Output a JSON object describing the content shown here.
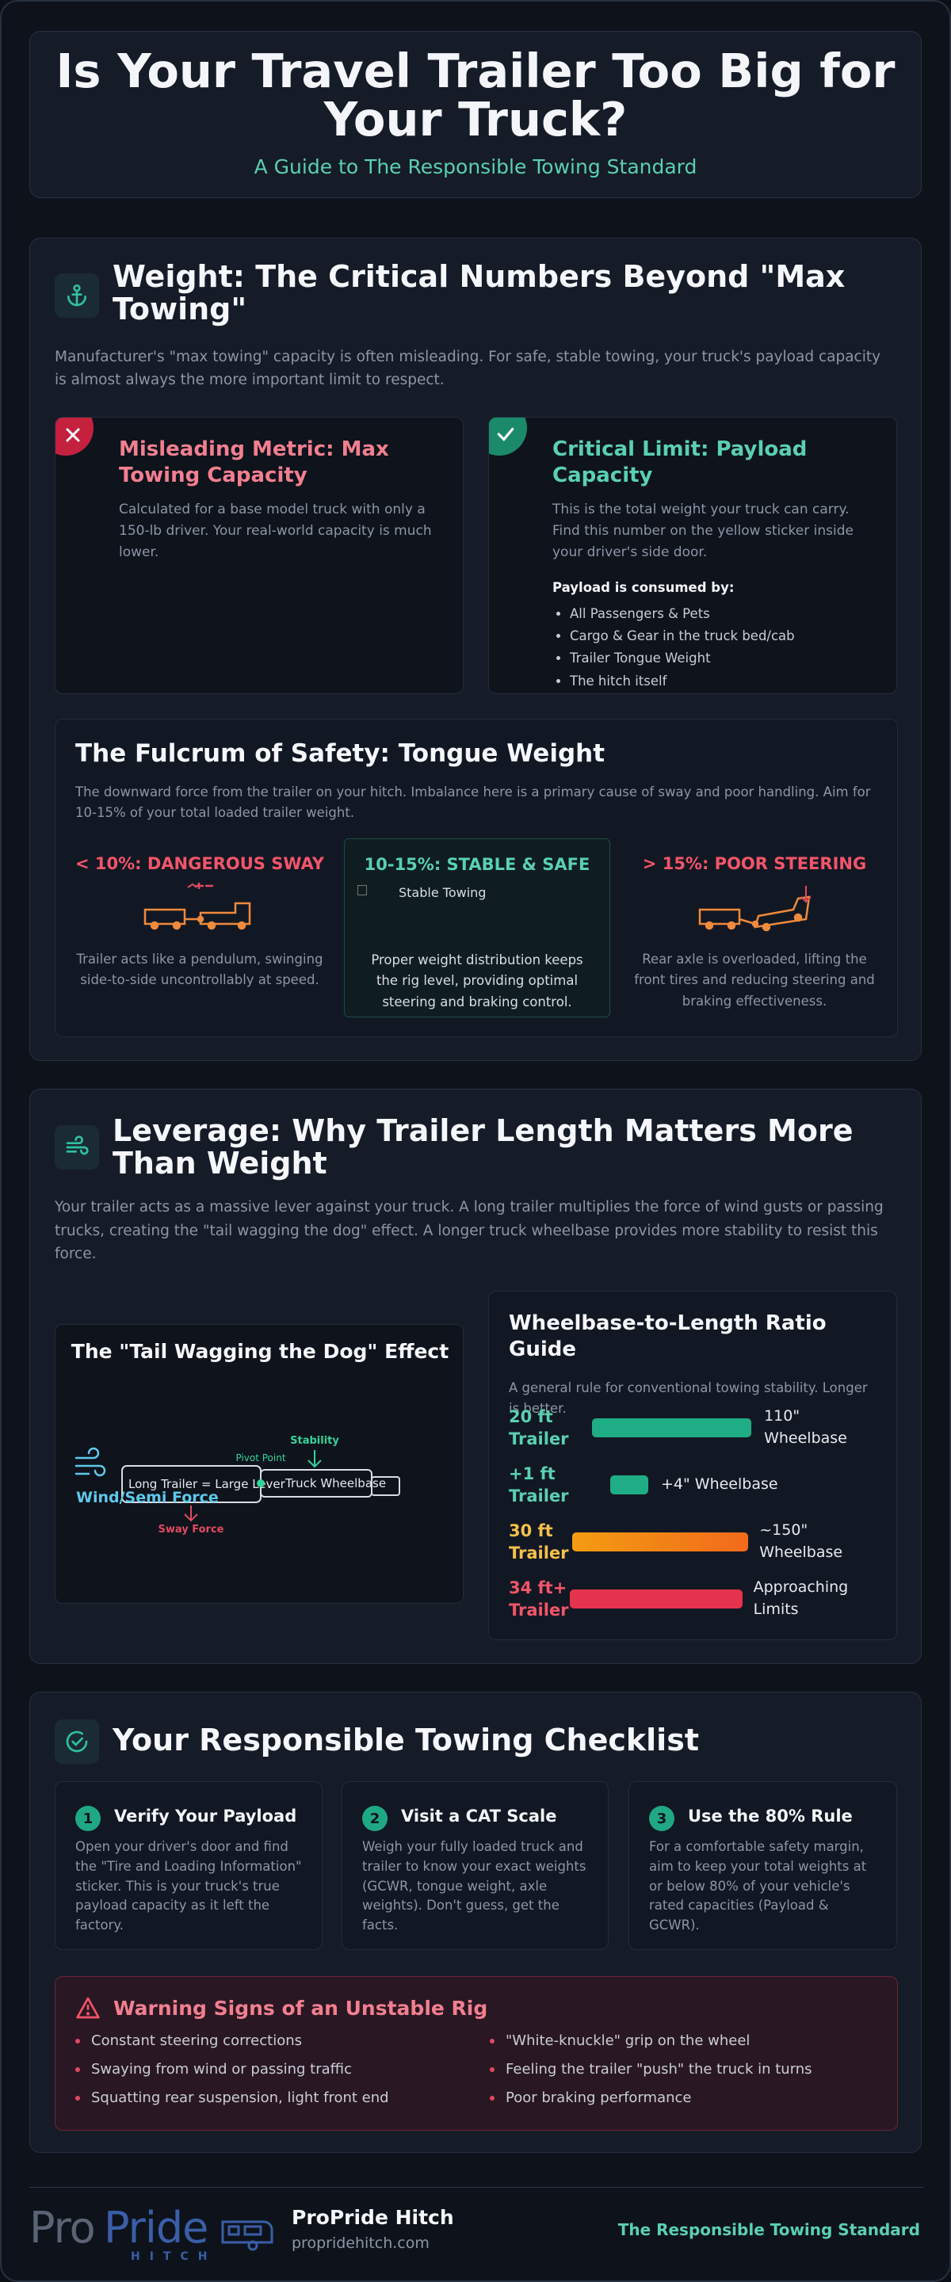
{
  "header": {
    "title": "Is Your Travel Trailer Too Big for Your Truck?",
    "subtitle": "A Guide to The Responsible Towing Standard"
  },
  "weight": {
    "title": "Weight: The Critical Numbers Beyond \"Max Towing\"",
    "intro": "Manufacturer's \"max towing\" capacity is often misleading. For safe, stable towing, your truck's payload capacity is almost always the more important limit to respect.",
    "misleading": {
      "title": "Misleading Metric: Max Towing Capacity",
      "text": "Calculated for a base model truck with only a 150-lb driver. Your real-world capacity is much lower."
    },
    "critical": {
      "title": "Critical Limit: Payload Capacity",
      "text": "This is the total weight your truck can carry. Find this number on the yellow sticker inside your driver's side door.",
      "list_title": "Payload is consumed by:",
      "items": [
        "All Passengers & Pets",
        "Cargo & Gear in the truck bed/cab",
        "Trailer Tongue Weight",
        "The hitch itself"
      ]
    },
    "tongue": {
      "title": "The Fulcrum of Safety: Tongue Weight",
      "intro": "The downward force from the trailer on your hitch. Imbalance here is a primary cause of sway and poor handling. Aim for 10-15% of your total loaded trailer weight.",
      "cases": [
        {
          "label": "< 10%: DANGEROUS SWAY",
          "text": "Trailer acts like a pendulum, swinging side-to-side uncontrollably at speed."
        },
        {
          "label": "10-15%: STABLE & SAFE",
          "image_alt": "Stable Towing",
          "text": "Proper weight distribution keeps the rig level, providing optimal steering and braking control."
        },
        {
          "label": "> 15%: POOR STEERING",
          "text": "Rear axle is overloaded, lifting the front tires and reducing steering and braking effectiveness."
        }
      ]
    }
  },
  "leverage": {
    "title": "Leverage: Why Trailer Length Matters More Than Weight",
    "intro": "Your trailer acts as a massive lever against your truck. A long trailer multiplies the force of wind gusts or passing trucks, creating the \"tail wagging the dog\" effect. A longer truck wheelbase provides more stability to resist this force.",
    "diagram": {
      "title": "The \"Tail Wagging the Dog\" Effect",
      "wind": "Wind/Semi Force",
      "pivot": "Pivot Point",
      "stability": "Stability",
      "trailer": "Long Trailer = Large Lever",
      "wheelbase": "Truck Wheelbase",
      "sway": "Sway Force"
    },
    "ratio": {
      "title": "Wheelbase-to-Length Ratio Guide",
      "intro": "A general rule for conventional towing stability. Longer is better.",
      "rows": [
        {
          "length": "20 ft Trailer",
          "wheelbase": "110\" Wheelbase"
        },
        {
          "length": "+1 ft Trailer",
          "wheelbase": "+4\" Wheelbase"
        },
        {
          "length": "30 ft Trailer",
          "wheelbase": "~150\" Wheelbase"
        },
        {
          "length": "34 ft+ Trailer",
          "wheelbase": "Approaching Limits"
        }
      ]
    }
  },
  "checklist": {
    "title": "Your Responsible Towing Checklist",
    "steps": [
      {
        "number": 1,
        "title": "Verify Your Payload",
        "text": "Open your driver's door and find the \"Tire and Loading Information\" sticker. This is your truck's true payload capacity as it left the factory."
      },
      {
        "number": 2,
        "title": "Visit a CAT Scale",
        "text": "Weigh your fully loaded truck and trailer to know your exact weights (GCWR, tongue weight, axle weights). Don't guess, get the facts."
      },
      {
        "number": 3,
        "title": "Use the 80% Rule",
        "text": "For a comfortable safety margin, aim to keep your total weights at or below 80% of your vehicle's rated capacities (Payload & GCWR)."
      }
    ],
    "warning": {
      "title": "Warning Signs of an Unstable Rig",
      "items": [
        "Constant steering corrections",
        "Swaying from wind or passing traffic",
        "Squatting rear suspension, light front end",
        "\"White-knuckle\" grip on the wheel",
        "Feeling the trailer \"push\" the truck in turns",
        "Poor braking performance"
      ]
    }
  },
  "footer": {
    "logo": {
      "pro": "Pro",
      "pride": "Pride",
      "hitch": "HITCH"
    },
    "name": "ProPride Hitch",
    "url": "propridehitch.com",
    "tagline": "The Responsible Towing Standard"
  }
}
